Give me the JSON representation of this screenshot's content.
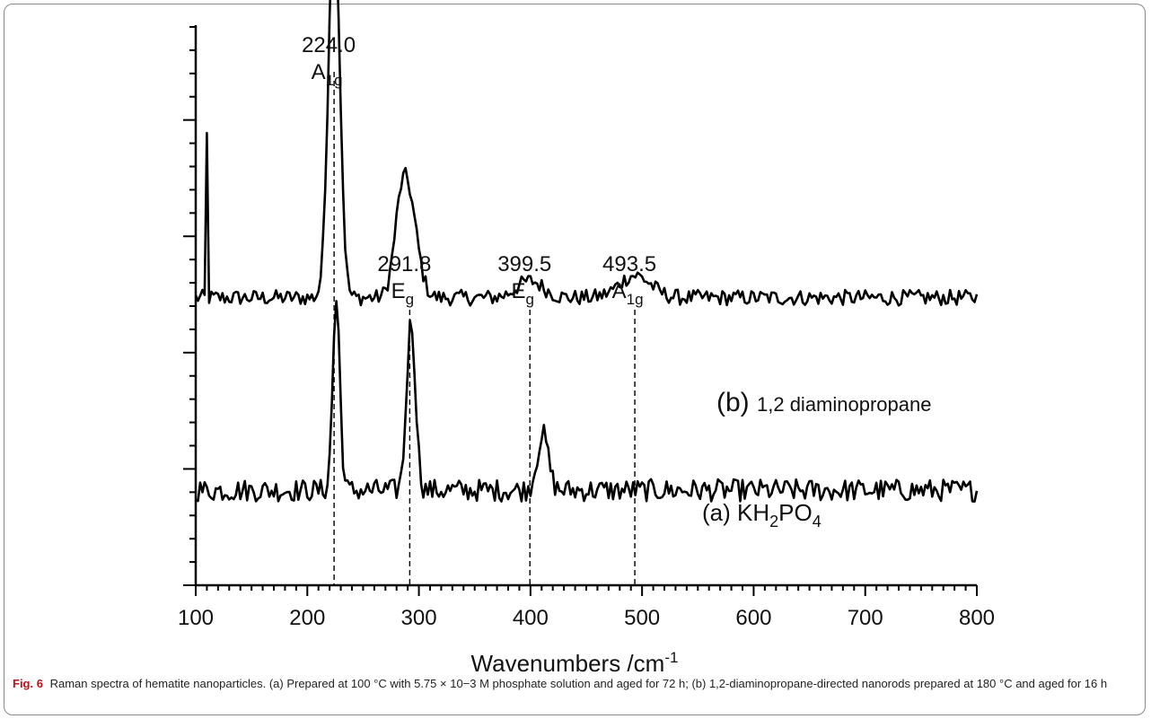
{
  "chart_data": {
    "type": "line",
    "xlabel": "Wavenumbers /cm",
    "xlabel_superscript": "-1",
    "ylabel": "",
    "xlim": [
      100,
      800
    ],
    "x_ticks": [
      100,
      200,
      300,
      400,
      500,
      600,
      700,
      800
    ],
    "y_axis_tick_labels_shown": false,
    "grid": false,
    "series": [
      {
        "name": "(b) 1,2 diaminopropane",
        "label_parts": {
          "prefix": "(b)",
          "text": "1,2 diaminopropane"
        },
        "baseline": 0.045,
        "peaks": [
          {
            "x": 224.0,
            "height": 0.7,
            "width": 5.0
          },
          {
            "x": 290.5,
            "height": 0.17,
            "width": 8.0
          },
          {
            "x": 283.0,
            "height": 0.08,
            "width": 6.0
          },
          {
            "x": 399.5,
            "height": 0.03,
            "width": 12.0
          },
          {
            "x": 493.5,
            "height": 0.04,
            "width": 14.0
          }
        ],
        "spike": {
          "x": 110,
          "value": 0.34
        },
        "noise_amp": 0.014,
        "offset": 0.47
      },
      {
        "name": "(a) KH2PO4",
        "label_parts": {
          "prefix": "(a)",
          "text": "KH",
          "sub1": "2",
          "mid": "PO",
          "sub2": "4"
        },
        "baseline": 0.17,
        "peaks": [
          {
            "x": 226.0,
            "height": 0.34,
            "width": 3.2
          },
          {
            "x": 293.0,
            "height": 0.3,
            "width": 4.0
          },
          {
            "x": 411.0,
            "height": 0.1,
            "width": 5.0
          }
        ],
        "noise_amp": 0.02,
        "offset": 0.0
      }
    ],
    "ref_lines": [
      {
        "x": 224.0,
        "value": "224.0",
        "mode": "A",
        "sub": "1g"
      },
      {
        "x": 291.8,
        "value": "291.8",
        "mode": "E",
        "sub": "g"
      },
      {
        "x": 399.5,
        "value": "399.5",
        "mode": "E",
        "sub": "g"
      },
      {
        "x": 493.5,
        "value": "493.5",
        "mode": "A",
        "sub": "1g"
      }
    ]
  },
  "caption": {
    "label": "Fig. 6",
    "text": "Raman spectra of hematite nanoparticles. (a) Prepared at 100 °C with 5.75 × 10−3 M phosphate solution and aged for 72 h; (b) 1,2-diaminopropane-directed nanorods prepared at 180 °C and aged for 16 h"
  }
}
